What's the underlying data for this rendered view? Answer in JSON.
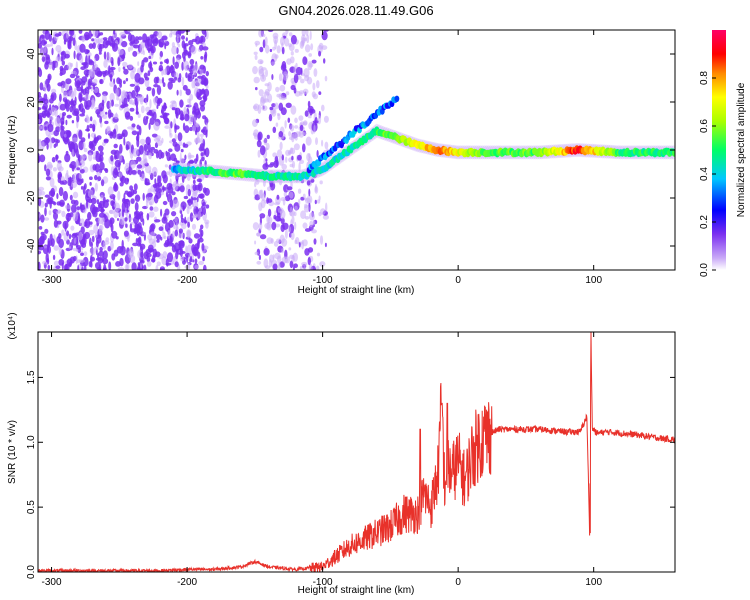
{
  "title": "GN04.2026.028.11.49.G06",
  "chart_data": [
    {
      "type": "heatmap",
      "xlabel": "Height of straight line (km)",
      "ylabel": "Frequency (Hz)",
      "xlim": [
        -310,
        160
      ],
      "ylim": [
        -50,
        50
      ],
      "x_ticks": [
        -300,
        -200,
        -100,
        0,
        100
      ],
      "y_ticks": [
        -40,
        -20,
        0,
        20,
        40
      ],
      "colorbar": {
        "label": "Normalized spectral amplitude",
        "range": [
          0,
          1
        ],
        "ticks": [
          0.0,
          0.2,
          0.4,
          0.6,
          0.8
        ],
        "tick_labels": [
          "0.0",
          "0.2",
          "0.4",
          "0.6",
          "0.8"
        ]
      },
      "ridge": {
        "description_points": [
          {
            "x": -210,
            "y": -8,
            "amp": 0.35
          },
          {
            "x": -180,
            "y": -9,
            "amp": 0.5
          },
          {
            "x": -160,
            "y": -10,
            "amp": 0.55
          },
          {
            "x": -140,
            "y": -11,
            "amp": 0.45
          },
          {
            "x": -115,
            "y": -11,
            "amp": 0.45
          },
          {
            "x": -100,
            "y": -8,
            "amp": 0.4
          },
          {
            "x": -80,
            "y": 0,
            "amp": 0.45
          },
          {
            "x": -60,
            "y": 8,
            "amp": 0.5
          },
          {
            "x": -45,
            "y": 5,
            "amp": 0.6
          },
          {
            "x": -30,
            "y": 2,
            "amp": 0.7
          },
          {
            "x": -15,
            "y": 0,
            "amp": 0.85
          },
          {
            "x": 0,
            "y": -1,
            "amp": 0.7
          },
          {
            "x": 20,
            "y": -1,
            "amp": 0.55
          },
          {
            "x": 60,
            "y": -1,
            "amp": 0.55
          },
          {
            "x": 88,
            "y": 0,
            "amp": 0.9
          },
          {
            "x": 120,
            "y": -1,
            "amp": 0.5
          },
          {
            "x": 160,
            "y": -1,
            "amp": 0.5
          }
        ]
      },
      "colors": {
        "noise": "#7b2ff0",
        "noise_light": "#c9a9f7"
      }
    },
    {
      "type": "line",
      "xlabel": "Height of straight line (km)",
      "ylabel": "SNR (10 * v/v)",
      "exponent_label": "(x10⁴)",
      "xlim": [
        -310,
        160
      ],
      "ylim": [
        0,
        1.85
      ],
      "x_ticks": [
        -300,
        -200,
        -100,
        0,
        100
      ],
      "y_ticks": [
        0.0,
        0.5,
        1.0,
        1.5
      ],
      "y_tick_labels": [
        "0.0",
        "0.5",
        "1.0",
        "1.5"
      ],
      "color": "#e8312a",
      "series": [
        {
          "x": [
            -310,
            -280,
            -250,
            -220,
            -200,
            -180,
            -160,
            -150,
            -140,
            -120,
            -100,
            -90,
            -80,
            -70,
            -60,
            -50,
            -40,
            -30,
            -25,
            -20,
            -15,
            -12,
            -10,
            -8,
            -5,
            0,
            5,
            10,
            15,
            20,
            30,
            40,
            60,
            80,
            90,
            95,
            97,
            98,
            99,
            100,
            102,
            110,
            130,
            150,
            160
          ],
          "y": [
            0.01,
            0.01,
            0.01,
            0.01,
            0.02,
            0.02,
            0.04,
            0.08,
            0.04,
            0.02,
            0.04,
            0.12,
            0.2,
            0.25,
            0.3,
            0.35,
            0.45,
            0.45,
            0.6,
            0.5,
            0.75,
            1.3,
            0.65,
            0.85,
            0.75,
            0.85,
            0.7,
            0.9,
            1.0,
            1.05,
            1.1,
            1.1,
            1.1,
            1.08,
            1.08,
            1.2,
            0.3,
            1.85,
            1.1,
            1.1,
            1.07,
            1.08,
            1.06,
            1.03,
            1.02
          ]
        }
      ]
    }
  ]
}
